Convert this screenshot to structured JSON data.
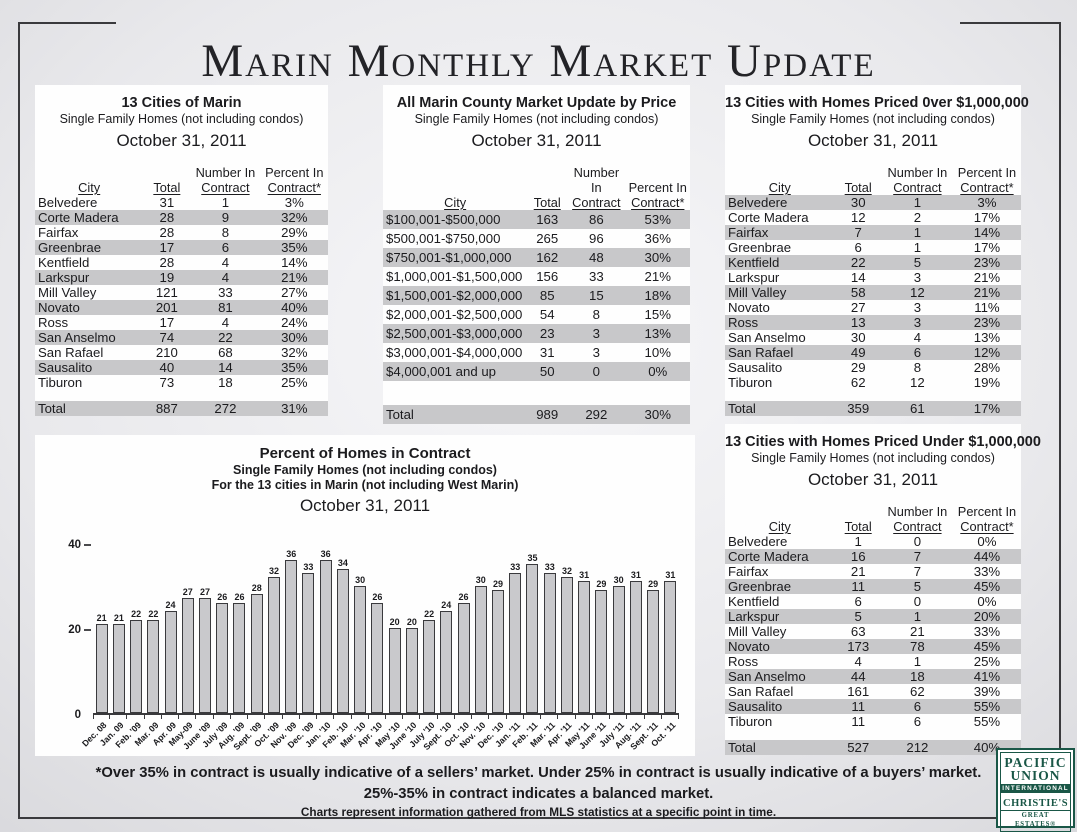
{
  "page": {
    "title": "Marin Monthly Market Update",
    "footnotes": [
      "*Over 35% in contract is usually indicative of a sellers’ market.  Under 25% in contract is usually indicative of a buyers’ market.",
      "25%-35% in contract indicates a balanced market.",
      "Charts represent information gathered from MLS statistics at a specific point in time."
    ]
  },
  "colors": {
    "row_shade": "#c8c8ca",
    "bar_fill": "#c9c9cc",
    "frame_border": "#3a3a3d",
    "logo_green": "#1a5747",
    "panel_background": "#fefefe"
  },
  "column_headers": {
    "line1": [
      "",
      "",
      "Number In",
      "Percent In"
    ],
    "line2": [
      "City",
      "Total",
      "Contract",
      "Contract*"
    ]
  },
  "tables": [
    {
      "title": "13 Cities of Marin",
      "subtitle": "Single Family Homes (not including condos)",
      "date": "October 31, 2011",
      "rows": [
        {
          "cells": [
            "Belvedere",
            "31",
            "1",
            "3%"
          ],
          "shaded": false
        },
        {
          "cells": [
            "Corte Madera",
            "28",
            "9",
            "32%"
          ],
          "shaded": true
        },
        {
          "cells": [
            "Fairfax",
            "28",
            "8",
            "29%"
          ],
          "shaded": false
        },
        {
          "cells": [
            "Greenbrae",
            "17",
            "6",
            "35%"
          ],
          "shaded": true
        },
        {
          "cells": [
            "Kentfield",
            "28",
            "4",
            "14%"
          ],
          "shaded": false
        },
        {
          "cells": [
            "Larkspur",
            "19",
            "4",
            "21%"
          ],
          "shaded": true
        },
        {
          "cells": [
            "Mill Valley",
            "121",
            "33",
            "27%"
          ],
          "shaded": false
        },
        {
          "cells": [
            "Novato",
            "201",
            "81",
            "40%"
          ],
          "shaded": true
        },
        {
          "cells": [
            "Ross",
            "17",
            "4",
            "24%"
          ],
          "shaded": false
        },
        {
          "cells": [
            "San Anselmo",
            "74",
            "22",
            "30%"
          ],
          "shaded": true
        },
        {
          "cells": [
            "San Rafael",
            "210",
            "68",
            "32%"
          ],
          "shaded": false
        },
        {
          "cells": [
            "Sausalito",
            "40",
            "14",
            "35%"
          ],
          "shaded": true
        },
        {
          "cells": [
            "Tiburon",
            "73",
            "18",
            "25%"
          ],
          "shaded": false
        }
      ],
      "total": {
        "cells": [
          "Total",
          "887",
          "272",
          "31%"
        ],
        "shaded": true
      }
    },
    {
      "title": "All Marin County Market Update by Price",
      "subtitle": "Single Family Homes (not including condos)",
      "date": "October 31, 2011",
      "rows": [
        {
          "cells": [
            "$100,001-$500,000",
            "163",
            "86",
            "53%"
          ],
          "shaded": true
        },
        {
          "cells": [
            "$500,001-$750,000",
            "265",
            "96",
            "36%"
          ],
          "shaded": false
        },
        {
          "cells": [
            "$750,001-$1,000,000",
            "162",
            "48",
            "30%"
          ],
          "shaded": true
        },
        {
          "cells": [
            "$1,000,001-$1,500,000",
            "156",
            "33",
            "21%"
          ],
          "shaded": false
        },
        {
          "cells": [
            "$1,500,001-$2,000,000",
            "85",
            "15",
            "18%"
          ],
          "shaded": true
        },
        {
          "cells": [
            "$2,000,001-$2,500,000",
            "54",
            "8",
            "15%"
          ],
          "shaded": false
        },
        {
          "cells": [
            "$2,500,001-$3,000,000",
            "23",
            "3",
            "13%"
          ],
          "shaded": true
        },
        {
          "cells": [
            "$3,000,001-$4,000,000",
            "31",
            "3",
            "10%"
          ],
          "shaded": false
        },
        {
          "cells": [
            "$4,000,001 and up",
            "50",
            "0",
            "0%"
          ],
          "shaded": true
        }
      ],
      "total": {
        "cells": [
          "Total",
          "989",
          "292",
          "30%"
        ],
        "shaded": true
      }
    },
    {
      "title": "13 Cities with Homes Priced 0ver $1,000,000",
      "subtitle": "Single Family Homes (not including condos)",
      "date": "October 31, 2011",
      "rows": [
        {
          "cells": [
            "Belvedere",
            "30",
            "1",
            "3%"
          ],
          "shaded": true
        },
        {
          "cells": [
            "Corte Madera",
            "12",
            "2",
            "17%"
          ],
          "shaded": false
        },
        {
          "cells": [
            "Fairfax",
            "7",
            "1",
            "14%"
          ],
          "shaded": true
        },
        {
          "cells": [
            "Greenbrae",
            "6",
            "1",
            "17%"
          ],
          "shaded": false
        },
        {
          "cells": [
            "Kentfield",
            "22",
            "5",
            "23%"
          ],
          "shaded": true
        },
        {
          "cells": [
            "Larkspur",
            "14",
            "3",
            "21%"
          ],
          "shaded": false
        },
        {
          "cells": [
            "Mill Valley",
            "58",
            "12",
            "21%"
          ],
          "shaded": true
        },
        {
          "cells": [
            "Novato",
            "27",
            "3",
            "11%"
          ],
          "shaded": false
        },
        {
          "cells": [
            "Ross",
            "13",
            "3",
            "23%"
          ],
          "shaded": true
        },
        {
          "cells": [
            "San Anselmo",
            "30",
            "4",
            "13%"
          ],
          "shaded": false
        },
        {
          "cells": [
            "San Rafael",
            "49",
            "6",
            "12%"
          ],
          "shaded": true
        },
        {
          "cells": [
            "Sausalito",
            "29",
            "8",
            "28%"
          ],
          "shaded": false
        },
        {
          "cells": [
            "Tiburon",
            "62",
            "12",
            "19%"
          ],
          "shaded": false
        }
      ],
      "total": {
        "cells": [
          "Total",
          "359",
          "61",
          "17%"
        ],
        "shaded": true
      }
    },
    {
      "title": "13 Cities with Homes Priced Under $1,000,000",
      "subtitle": "Single Family Homes (not including condos)",
      "date": "October 31, 2011",
      "rows": [
        {
          "cells": [
            "Belvedere",
            "1",
            "0",
            "0%"
          ],
          "shaded": false
        },
        {
          "cells": [
            "Corte Madera",
            "16",
            "7",
            "44%"
          ],
          "shaded": true
        },
        {
          "cells": [
            "Fairfax",
            "21",
            "7",
            "33%"
          ],
          "shaded": false
        },
        {
          "cells": [
            "Greenbrae",
            "11",
            "5",
            "45%"
          ],
          "shaded": true
        },
        {
          "cells": [
            "Kentfield",
            "6",
            "0",
            "0%"
          ],
          "shaded": false
        },
        {
          "cells": [
            "Larkspur",
            "5",
            "1",
            "20%"
          ],
          "shaded": true
        },
        {
          "cells": [
            "Mill Valley",
            "63",
            "21",
            "33%"
          ],
          "shaded": false
        },
        {
          "cells": [
            "Novato",
            "173",
            "78",
            "45%"
          ],
          "shaded": true
        },
        {
          "cells": [
            "Ross",
            "4",
            "1",
            "25%"
          ],
          "shaded": false
        },
        {
          "cells": [
            "San Anselmo",
            "44",
            "18",
            "41%"
          ],
          "shaded": true
        },
        {
          "cells": [
            "San Rafael",
            "161",
            "62",
            "39%"
          ],
          "shaded": false
        },
        {
          "cells": [
            "Sausalito",
            "11",
            "6",
            "55%"
          ],
          "shaded": true
        },
        {
          "cells": [
            "Tiburon",
            "11",
            "6",
            "55%"
          ],
          "shaded": false
        }
      ],
      "total": {
        "cells": [
          "Total",
          "527",
          "212",
          "40%"
        ],
        "shaded": true
      }
    }
  ],
  "chart_data": {
    "type": "bar",
    "title": "Percent of Homes in Contract",
    "subtitle1": "Single Family Homes (not including condos)",
    "subtitle2": "For the 13 cities in Marin (not including West Marin)",
    "date": "October 31, 2011",
    "xlabel": "",
    "ylabel": "",
    "ylim": [
      0,
      40
    ],
    "yticks": [
      0,
      20,
      40
    ],
    "grid": false,
    "legend": "none",
    "categories": [
      "Dec. 08",
      "Jan. 09",
      "Feb. '09",
      "Mar. 09",
      "Apr. 09",
      "May-09",
      "June '09",
      "July '09",
      "Aug. '09",
      "Sept. '09",
      "Oct. '09",
      "Nov. '09",
      "Dec. '09",
      "Jan. '10",
      "Feb. '10",
      "Mar. '10",
      "Apr. '10",
      "May '10",
      "June '10",
      "July '10",
      "Sept. '10",
      "Oct. '10",
      "Nov. '10",
      "Dec. '10",
      "Jan. '11",
      "Feb. '11",
      "Mar. '11",
      "Apr. '11",
      "May '11",
      "June '11",
      "July '11",
      "Aug. '11",
      "Sept. '11",
      "Oct. '11"
    ],
    "values": [
      21,
      21,
      22,
      22,
      24,
      27,
      27,
      26,
      26,
      28,
      32,
      36,
      33,
      36,
      34,
      30,
      26,
      20,
      20,
      22,
      24,
      26,
      30,
      29,
      33,
      35,
      33,
      32,
      31,
      29,
      30,
      31,
      29,
      31
    ]
  },
  "logo": {
    "line1": "PACIFIC",
    "line2": "UNION",
    "band": "INTERNATIONAL",
    "line3": "CHRISTIE'S",
    "line4": "GREAT ESTATES®"
  }
}
